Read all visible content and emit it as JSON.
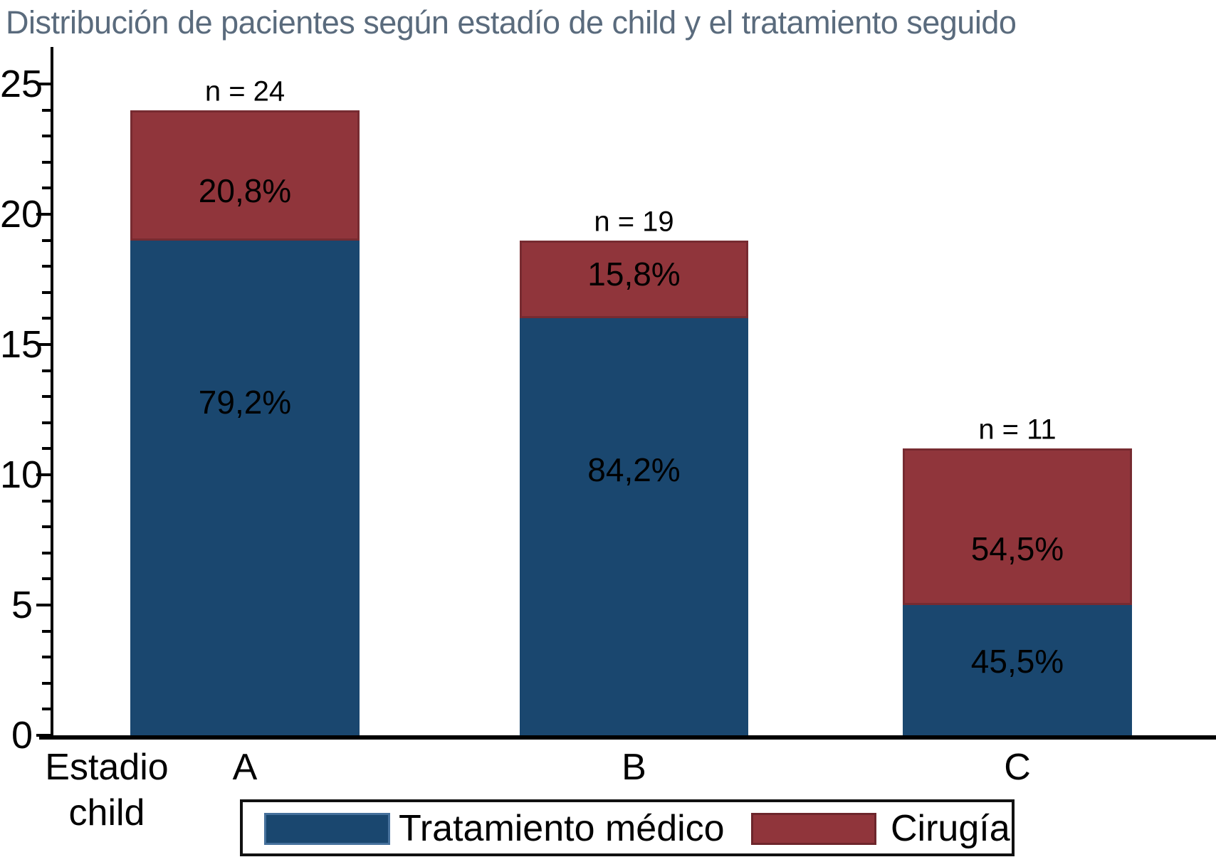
{
  "title": "Distribución de pacientes según estadío de child y el tratamiento seguido",
  "colors": {
    "medico": "#1A476F",
    "cirugia": "#90353B",
    "title_text": "#5A6B7D",
    "axis": "#000000",
    "label_text": "#000000"
  },
  "axis": {
    "x_caption_line1": "Estadio",
    "x_caption_line2": "child",
    "y_ticks": [
      0,
      5,
      10,
      15,
      20,
      25
    ],
    "minor_tick_every": 1,
    "y_max": 25
  },
  "legend": [
    {
      "label": "Tratamiento médico",
      "color_key": "medico"
    },
    {
      "label": "Cirugía",
      "color_key": "cirugia"
    }
  ],
  "chart_data": {
    "type": "bar",
    "stacked": true,
    "title": "Distribución de pacientes según estadío de child y el tratamiento seguido",
    "categories": [
      "A",
      "B",
      "C"
    ],
    "category_axis_caption": "Estadio child",
    "totals": [
      24,
      19,
      11
    ],
    "total_labels": [
      "n = 24",
      "n = 19",
      "n = 11"
    ],
    "series": [
      {
        "name": "Tratamiento médico",
        "color_key": "medico",
        "values": [
          19,
          16,
          5
        ],
        "percents": [
          79.2,
          84.2,
          45.5
        ],
        "percent_labels": [
          "79,2%",
          "84,2%",
          "45,5%"
        ],
        "label_y_units": [
          12.8,
          10.2,
          2.85
        ]
      },
      {
        "name": "Cirugía",
        "color_key": "cirugia",
        "values": [
          5,
          3,
          6
        ],
        "percents": [
          20.8,
          15.8,
          54.5
        ],
        "percent_labels": [
          "20,8%",
          "15,8%",
          "54,5%"
        ],
        "label_y_units": [
          20.9,
          17.7,
          7.15
        ]
      }
    ],
    "ylim": [
      0,
      25
    ],
    "grid": false,
    "legend_position": "bottom"
  }
}
